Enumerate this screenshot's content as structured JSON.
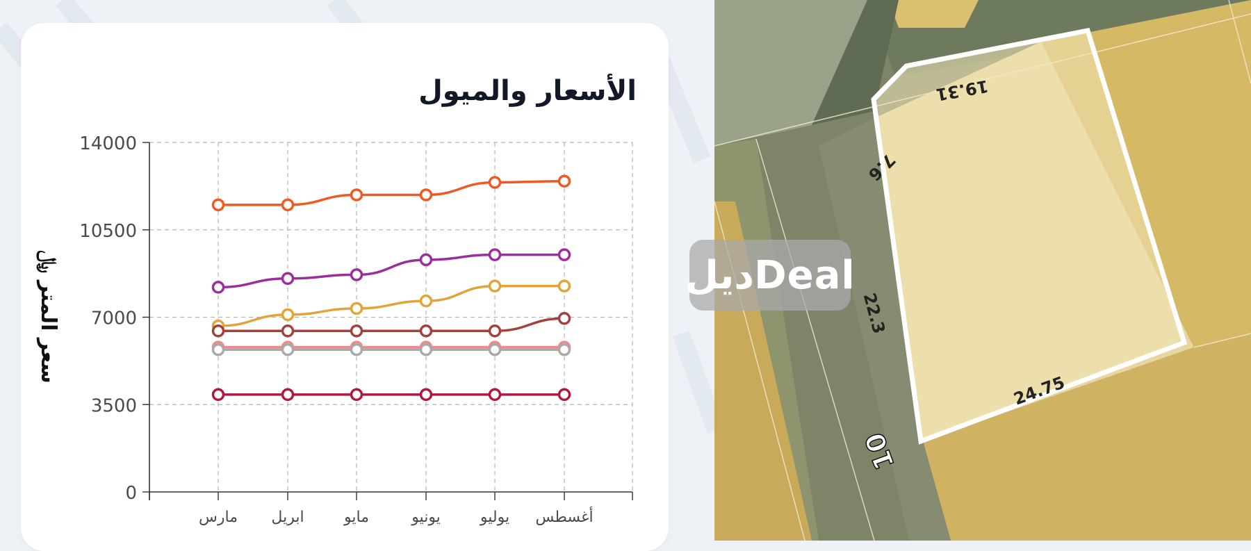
{
  "card": {
    "title": "الأسعار والميول"
  },
  "watermark": {
    "text": "ديلDeal"
  },
  "map": {
    "labels": {
      "top": "19.31",
      "corner": "7.6",
      "left": "22.3",
      "bottom": "24.75",
      "street": "10"
    },
    "colors": {
      "parcel_outline": "#ffffff",
      "plot": "#d3b76a",
      "road": "#8c9474"
    }
  },
  "chart_data": {
    "type": "line",
    "ylabel": "سعر المتر ﷼",
    "categories": [
      "مارس",
      "ابريل",
      "مايو",
      "يونيو",
      "يوليو",
      "أغسطس"
    ],
    "yticks": [
      0,
      3500,
      7000,
      10500,
      14000
    ],
    "ylim": [
      0,
      14000
    ],
    "grid": true,
    "series": [
      {
        "color": "#ee5a24",
        "values": [
          11500,
          11500,
          11900,
          11900,
          12400,
          12450
        ]
      },
      {
        "color": "#9b2e9b",
        "values": [
          8200,
          8550,
          8700,
          9300,
          9500,
          9500
        ]
      },
      {
        "color": "#e0a43a",
        "values": [
          6650,
          7100,
          7350,
          7650,
          8250,
          8250
        ]
      },
      {
        "color": "#a3423d",
        "values": [
          6450,
          6450,
          6450,
          6450,
          6450,
          6950
        ]
      },
      {
        "color": "#f08a8a",
        "values": [
          5800,
          5800,
          5800,
          5800,
          5800,
          5800
        ]
      },
      {
        "color": "#a9a9a9",
        "values": [
          5700,
          5700,
          5700,
          5700,
          5700,
          5700
        ]
      },
      {
        "color": "#b0183f",
        "values": [
          3900,
          3900,
          3900,
          3900,
          3900,
          3900
        ]
      }
    ]
  }
}
